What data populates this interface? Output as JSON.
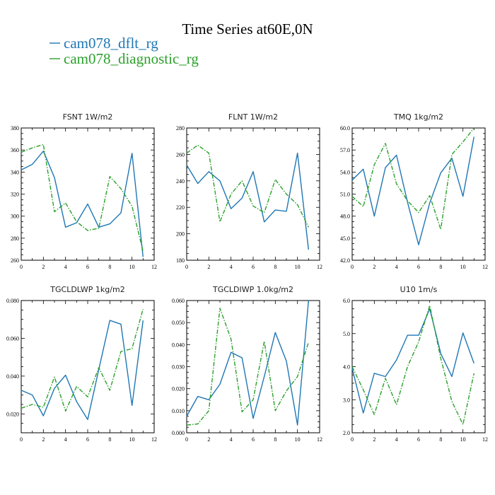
{
  "figure": {
    "title": "Time Series at60E,0N",
    "legend": [
      {
        "label": "cam078_dflt_rg",
        "color": "#1f77b4",
        "dash": "solid"
      },
      {
        "label": "cam078_diagnostic_rg",
        "color": "#2ca02c",
        "dash": "dashdot"
      }
    ]
  },
  "chart_data": [
    {
      "type": "line",
      "title": "FSNT   1W/m2",
      "xlim": [
        0,
        12
      ],
      "ylim": [
        260,
        380
      ],
      "xticks": [
        0,
        2,
        4,
        6,
        8,
        10,
        12
      ],
      "yticks": [
        260,
        280,
        300,
        320,
        340,
        360,
        380
      ],
      "ytick_labels": [
        "260",
        "280",
        "300",
        "320",
        "340",
        "360",
        "380"
      ],
      "x": [
        0,
        1,
        2,
        3,
        4,
        5,
        6,
        7,
        8,
        9,
        10,
        11
      ],
      "series": [
        {
          "name": "cam078_dflt_rg",
          "values": [
            342,
            347,
            359,
            335,
            290,
            294,
            311,
            290,
            293,
            303,
            357,
            263
          ]
        },
        {
          "name": "cam078_diagnostic_rg",
          "values": [
            358,
            362,
            365,
            304,
            312,
            295,
            287,
            289,
            336,
            325,
            309,
            268
          ]
        }
      ]
    },
    {
      "type": "line",
      "title": "FLNT   1W/m2",
      "xlim": [
        0,
        12
      ],
      "ylim": [
        180,
        280
      ],
      "xticks": [
        0,
        2,
        4,
        6,
        8,
        10,
        12
      ],
      "yticks": [
        180,
        200,
        220,
        240,
        260,
        280
      ],
      "ytick_labels": [
        "180",
        "200",
        "220",
        "240",
        "260",
        "280"
      ],
      "x": [
        0,
        1,
        2,
        3,
        4,
        5,
        6,
        7,
        8,
        9,
        10,
        11
      ],
      "series": [
        {
          "name": "cam078_dflt_rg",
          "values": [
            252,
            238,
            247,
            240,
            219,
            227,
            247,
            209,
            218,
            217,
            261,
            188
          ]
        },
        {
          "name": "cam078_diagnostic_rg",
          "values": [
            261,
            267,
            261,
            209,
            230,
            240,
            221,
            216,
            241,
            230,
            222,
            205
          ]
        }
      ]
    },
    {
      "type": "line",
      "title": "TMQ   1kg/m2",
      "xlim": [
        0,
        12
      ],
      "ylim": [
        42,
        60
      ],
      "xticks": [
        0,
        2,
        4,
        6,
        8,
        10,
        12
      ],
      "yticks": [
        42,
        45,
        48,
        51,
        54,
        57,
        60
      ],
      "ytick_labels": [
        "42.0",
        "45.0",
        "48.0",
        "51.0",
        "54.0",
        "57.0",
        "60.0"
      ],
      "x": [
        0,
        1,
        2,
        3,
        4,
        5,
        6,
        7,
        8,
        9,
        10,
        11
      ],
      "series": [
        {
          "name": "cam078_dflt_rg",
          "values": [
            52.9,
            54.4,
            48.0,
            54.6,
            56.3,
            49.9,
            44.1,
            49.8,
            53.9,
            55.9,
            50.7,
            58.8
          ]
        },
        {
          "name": "cam078_diagnostic_rg",
          "values": [
            50.7,
            49.3,
            55.0,
            57.9,
            52.4,
            50.1,
            48.5,
            50.8,
            46.2,
            56.4,
            58.1,
            60.0
          ]
        }
      ]
    },
    {
      "type": "line",
      "title": "TGCLDLWP   1kg/m2",
      "xlim": [
        0,
        12
      ],
      "ylim": [
        0.01,
        0.08
      ],
      "xticks": [
        0,
        2,
        4,
        6,
        8,
        10,
        12
      ],
      "yticks": [
        0.02,
        0.04,
        0.06,
        0.08
      ],
      "ytick_labels": [
        "0.020",
        "0.040",
        "0.060",
        "0.080"
      ],
      "x": [
        0,
        1,
        2,
        3,
        4,
        5,
        6,
        7,
        8,
        9,
        10,
        11
      ],
      "series": [
        {
          "name": "cam078_dflt_rg",
          "values": [
            0.0325,
            0.03,
            0.019,
            0.0335,
            0.0405,
            0.0265,
            0.017,
            0.0435,
            0.0695,
            0.0675,
            0.0245,
            0.0695
          ]
        },
        {
          "name": "cam078_diagnostic_rg",
          "values": [
            0.023,
            0.025,
            0.0235,
            0.0395,
            0.0215,
            0.0345,
            0.029,
            0.0445,
            0.0325,
            0.053,
            0.0545,
            0.0755
          ]
        }
      ]
    },
    {
      "type": "line",
      "title": "TGCLDIWP   1.0kg/m2",
      "xlim": [
        0,
        12
      ],
      "ylim": [
        0,
        0.06
      ],
      "xticks": [
        0,
        2,
        4,
        6,
        8,
        10,
        12
      ],
      "yticks": [
        0,
        0.01,
        0.02,
        0.03,
        0.04,
        0.05,
        0.06
      ],
      "ytick_labels": [
        "0.000",
        "0.010",
        "0.020",
        "0.030",
        "0.040",
        "0.050",
        "0.060"
      ],
      "x": [
        0,
        1,
        2,
        3,
        4,
        5,
        6,
        7,
        8,
        9,
        10,
        11
      ],
      "series": [
        {
          "name": "cam078_dflt_rg",
          "values": [
            0.0075,
            0.0165,
            0.015,
            0.022,
            0.0365,
            0.034,
            0.0065,
            0.0255,
            0.0455,
            0.0325,
            0.0035,
            0.06
          ]
        },
        {
          "name": "cam078_diagnostic_rg",
          "values": [
            0.0035,
            0.004,
            0.01,
            0.0565,
            0.0425,
            0.0095,
            0.015,
            0.0415,
            0.01,
            0.019,
            0.0255,
            0.041
          ]
        }
      ]
    },
    {
      "type": "line",
      "title": "U10   1m/s",
      "xlim": [
        0,
        12
      ],
      "ylim": [
        2,
        6
      ],
      "xticks": [
        0,
        2,
        4,
        6,
        8,
        10,
        12
      ],
      "yticks": [
        2,
        3,
        4,
        5,
        6
      ],
      "ytick_labels": [
        "2.0",
        "3.0",
        "4.0",
        "5.0",
        "6.0"
      ],
      "x": [
        0,
        1,
        2,
        3,
        4,
        5,
        6,
        7,
        8,
        9,
        10,
        11
      ],
      "series": [
        {
          "name": "cam078_dflt_rg",
          "values": [
            3.95,
            2.6,
            3.8,
            3.7,
            4.2,
            4.95,
            4.95,
            5.75,
            4.4,
            3.7,
            5.02,
            4.1
          ]
        },
        {
          "name": "cam078_diagnostic_rg",
          "values": [
            4.0,
            3.3,
            2.55,
            3.65,
            2.85,
            4.0,
            4.75,
            5.85,
            4.25,
            2.95,
            2.25,
            3.8
          ]
        }
      ]
    }
  ]
}
